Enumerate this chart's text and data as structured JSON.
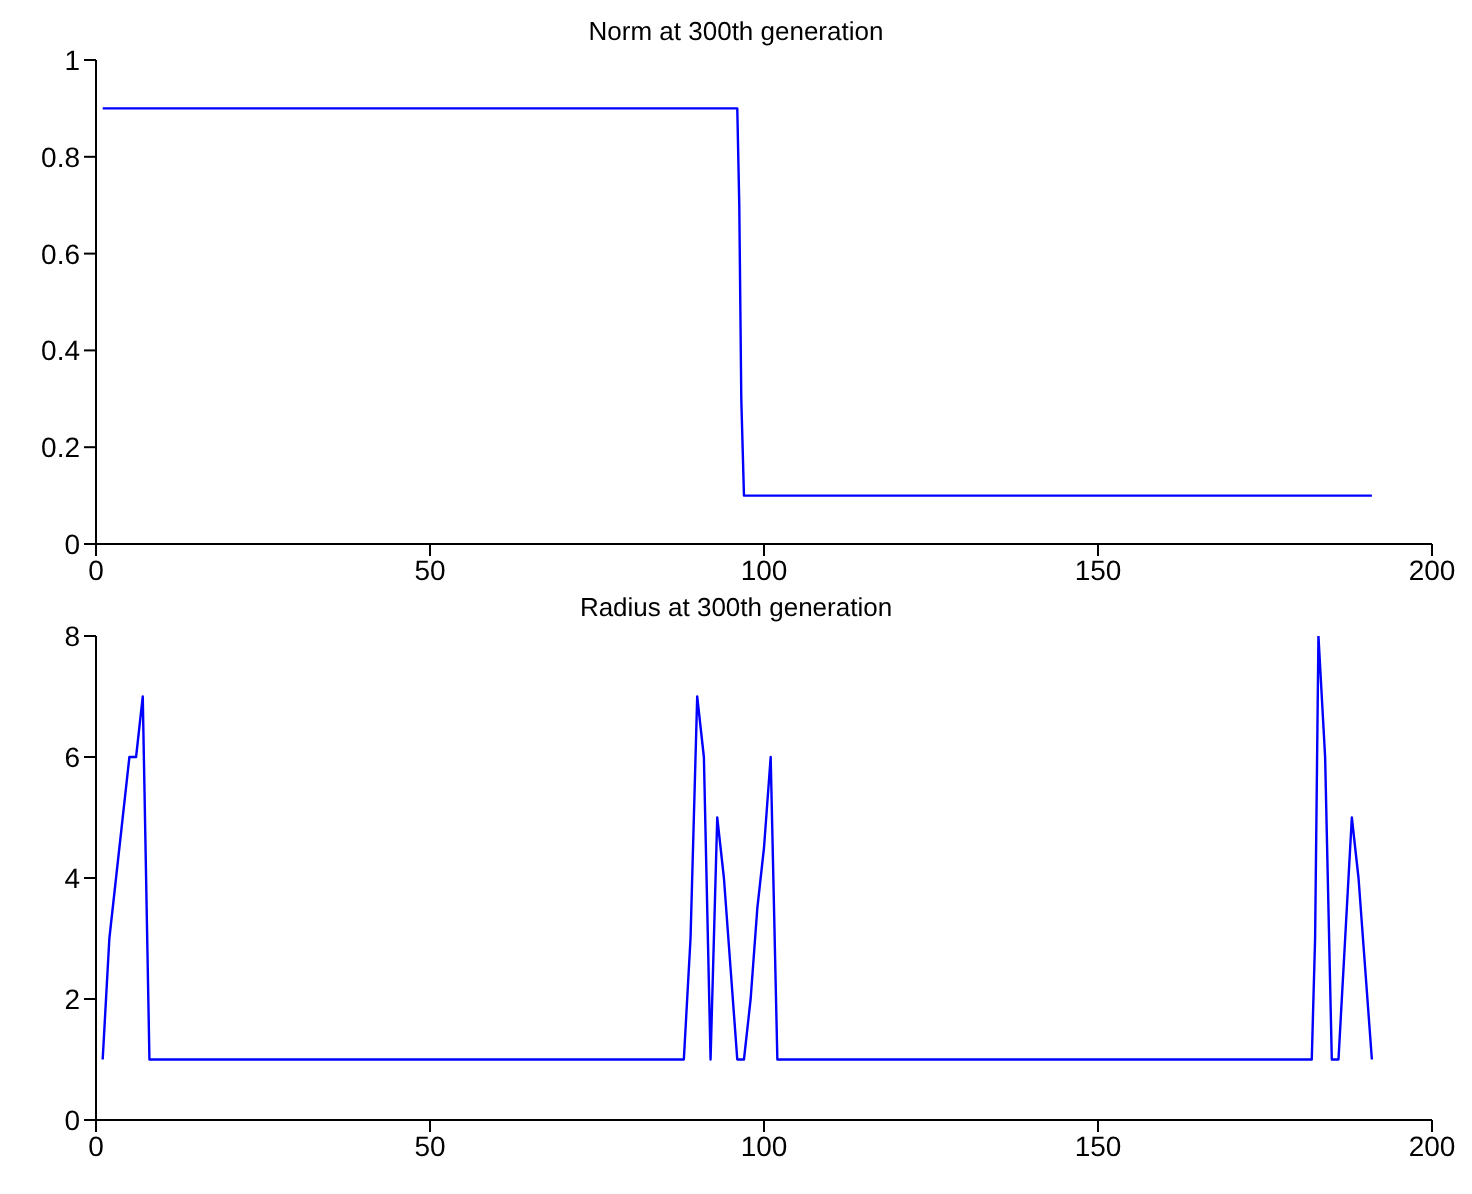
{
  "chart_data": [
    {
      "type": "line",
      "title": "Norm at 300th generation",
      "xlim": [
        0,
        200
      ],
      "xticks": [
        0,
        50,
        100,
        150,
        200
      ],
      "ylim": [
        0,
        1
      ],
      "yticks": [
        0,
        0.2,
        0.4,
        0.6,
        0.8,
        1
      ],
      "series": [
        {
          "color": "#0000ff",
          "x": [
            1,
            96,
            96.3,
            96.6,
            97,
            191
          ],
          "values": [
            0.9,
            0.9,
            0.7,
            0.3,
            0.1,
            0.1
          ]
        }
      ]
    },
    {
      "type": "line",
      "title": "Radius at 300th generation",
      "xlim": [
        0,
        200
      ],
      "xticks": [
        0,
        50,
        100,
        150,
        200
      ],
      "ylim": [
        0,
        8
      ],
      "yticks": [
        0,
        2,
        4,
        6,
        8
      ],
      "series": [
        {
          "color": "#0000ff",
          "x": [
            1,
            2,
            3,
            4,
            5,
            6,
            7,
            8,
            88,
            89,
            90,
            91,
            92,
            93,
            94,
            95,
            96,
            97,
            98,
            99,
            100,
            101,
            102,
            182,
            182.5,
            183,
            184,
            185,
            186,
            187,
            188,
            189,
            190,
            191
          ],
          "values": [
            1,
            3,
            4,
            5,
            6,
            6,
            7,
            1,
            1,
            3,
            7,
            6,
            1,
            5,
            4,
            2.5,
            1,
            1,
            2,
            3.5,
            4.5,
            6,
            1,
            1,
            3,
            8,
            6,
            1,
            1,
            3,
            5,
            4,
            2.5,
            1
          ]
        }
      ]
    }
  ]
}
